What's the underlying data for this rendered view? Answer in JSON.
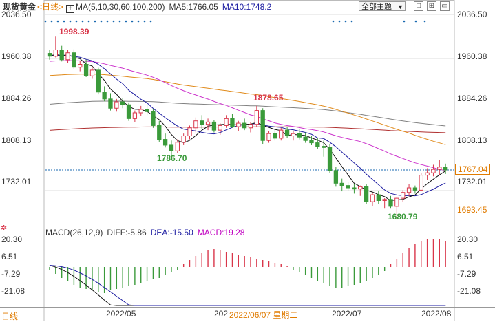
{
  "header": {
    "instrument": "现货黄金",
    "period": "<日线>",
    "ma_label": "MA(5,10,30,60,100,200)",
    "ma5": "MA5:1766.05",
    "ma10": "MA10:1748.2",
    "topic_select": "全部主题",
    "plus_icon": "+"
  },
  "toolbar": {
    "icons": [
      "checkbox-icon",
      "grid-icon",
      "window-icon"
    ]
  },
  "main_axis": {
    "right_ticks": [
      "2036.50",
      "1960.38",
      "1884.26",
      "1808.13",
      "1732.01"
    ],
    "left_ticks": [
      "2036.50",
      "1960.38",
      "1884.26",
      "1808.13",
      "1732.01"
    ],
    "last_price": "1767.04",
    "low_tag": "1693.45"
  },
  "annotations": {
    "high": "1998.39",
    "mid_high": "1878.65",
    "mid_low": "1786.70",
    "low": "1680.79"
  },
  "macd": {
    "label": "MACD(26,12,9)",
    "diff": "DIFF:-5.86",
    "dea": "DEA:-15.50",
    "macd": "MACD:19.28",
    "right_ticks": [
      "20.30",
      "6.51",
      "-7.29",
      "-21.08"
    ],
    "left_ticks": [
      "20.30",
      "6.51",
      "-7.29",
      "-21.08"
    ]
  },
  "x_axis": {
    "labels": [
      "2022/05",
      "202",
      "2022/07",
      "2022/08"
    ],
    "hover_date": "2022/06/07 星期二"
  },
  "footer": {
    "period": "日线",
    "settings_icon": "gear-icon"
  },
  "colors": {
    "up": "#d9364a",
    "down": "#3a9a3a",
    "ma5": "#111111",
    "ma10": "#1a1aa0",
    "ma30": "#cc33cc",
    "ma60": "#e08a1a",
    "ma100": "#808080",
    "ma200": "#b03030",
    "price_line": "#1a6ab0"
  },
  "chart_data": {
    "type": "candlestick",
    "title": "现货黄金 <日线>",
    "ylim": [
      1680,
      2040
    ],
    "ohlc": [
      [
        1969,
        1975,
        1958,
        1964
      ],
      [
        1964,
        1998,
        1962,
        1975
      ],
      [
        1975,
        1982,
        1955,
        1958
      ],
      [
        1958,
        1975,
        1952,
        1970
      ],
      [
        1970,
        1976,
        1942,
        1945
      ],
      [
        1945,
        1956,
        1938,
        1950
      ],
      [
        1950,
        1958,
        1928,
        1930
      ],
      [
        1930,
        1945,
        1925,
        1940
      ],
      [
        1940,
        1944,
        1898,
        1902
      ],
      [
        1902,
        1912,
        1886,
        1890
      ],
      [
        1890,
        1900,
        1870,
        1874
      ],
      [
        1874,
        1890,
        1868,
        1885
      ],
      [
        1885,
        1892,
        1874,
        1880
      ],
      [
        1880,
        1884,
        1852,
        1856
      ],
      [
        1856,
        1870,
        1850,
        1866
      ],
      [
        1866,
        1878,
        1860,
        1872
      ],
      [
        1872,
        1880,
        1862,
        1868
      ],
      [
        1868,
        1872,
        1840,
        1844
      ],
      [
        1844,
        1852,
        1816,
        1820
      ],
      [
        1820,
        1830,
        1806,
        1810
      ],
      [
        1810,
        1818,
        1787,
        1800
      ],
      [
        1800,
        1820,
        1796,
        1815
      ],
      [
        1815,
        1830,
        1810,
        1826
      ],
      [
        1826,
        1844,
        1820,
        1840
      ],
      [
        1840,
        1858,
        1832,
        1852
      ],
      [
        1852,
        1862,
        1838,
        1846
      ],
      [
        1846,
        1856,
        1836,
        1850
      ],
      [
        1850,
        1854,
        1832,
        1836
      ],
      [
        1836,
        1848,
        1828,
        1844
      ],
      [
        1844,
        1862,
        1840,
        1856
      ],
      [
        1856,
        1864,
        1840,
        1842
      ],
      [
        1842,
        1852,
        1834,
        1848
      ],
      [
        1848,
        1856,
        1836,
        1840
      ],
      [
        1840,
        1850,
        1832,
        1846
      ],
      [
        1846,
        1878,
        1842,
        1870
      ],
      [
        1870,
        1874,
        1812,
        1818
      ],
      [
        1818,
        1834,
        1814,
        1830
      ],
      [
        1830,
        1836,
        1818,
        1822
      ],
      [
        1822,
        1840,
        1818,
        1836
      ],
      [
        1836,
        1842,
        1822,
        1826
      ],
      [
        1826,
        1834,
        1818,
        1830
      ],
      [
        1830,
        1838,
        1820,
        1824
      ],
      [
        1824,
        1832,
        1814,
        1818
      ],
      [
        1818,
        1826,
        1810,
        1814
      ],
      [
        1814,
        1822,
        1804,
        1808
      ],
      [
        1808,
        1818,
        1790,
        1806
      ],
      [
        1806,
        1812,
        1762,
        1766
      ],
      [
        1766,
        1772,
        1738,
        1744
      ],
      [
        1744,
        1752,
        1730,
        1740
      ],
      [
        1740,
        1746,
        1730,
        1736
      ],
      [
        1736,
        1742,
        1726,
        1734
      ],
      [
        1734,
        1740,
        1722,
        1738
      ],
      [
        1738,
        1742,
        1708,
        1712
      ],
      [
        1712,
        1728,
        1704,
        1724
      ],
      [
        1724,
        1730,
        1708,
        1714
      ],
      [
        1714,
        1718,
        1700,
        1716
      ],
      [
        1716,
        1722,
        1700,
        1704
      ],
      [
        1704,
        1720,
        1681,
        1718
      ],
      [
        1718,
        1732,
        1712,
        1728
      ],
      [
        1728,
        1742,
        1722,
        1736
      ],
      [
        1736,
        1740,
        1726,
        1732
      ],
      [
        1732,
        1762,
        1730,
        1758
      ],
      [
        1758,
        1770,
        1750,
        1762
      ],
      [
        1762,
        1776,
        1756,
        1768
      ],
      [
        1768,
        1784,
        1758,
        1772
      ],
      [
        1772,
        1778,
        1760,
        1767
      ]
    ],
    "macd_hist": [
      -2,
      -5,
      -8,
      -10,
      -13,
      -15,
      -16,
      -17,
      -18,
      -19,
      -17,
      -16,
      -15,
      -14,
      -13,
      -12,
      -10,
      -9,
      -8,
      -6,
      -4,
      -2,
      2,
      5,
      8,
      10,
      12,
      13,
      12,
      11,
      10,
      9,
      8,
      7,
      6,
      5,
      4,
      3,
      2,
      1,
      -2,
      -4,
      -6,
      -8,
      -10,
      -12,
      -14,
      -15,
      -15,
      -14,
      -13,
      -12,
      -10,
      -8,
      -6,
      -3,
      2,
      6,
      10,
      14,
      17,
      19,
      20,
      20,
      20,
      19
    ]
  }
}
